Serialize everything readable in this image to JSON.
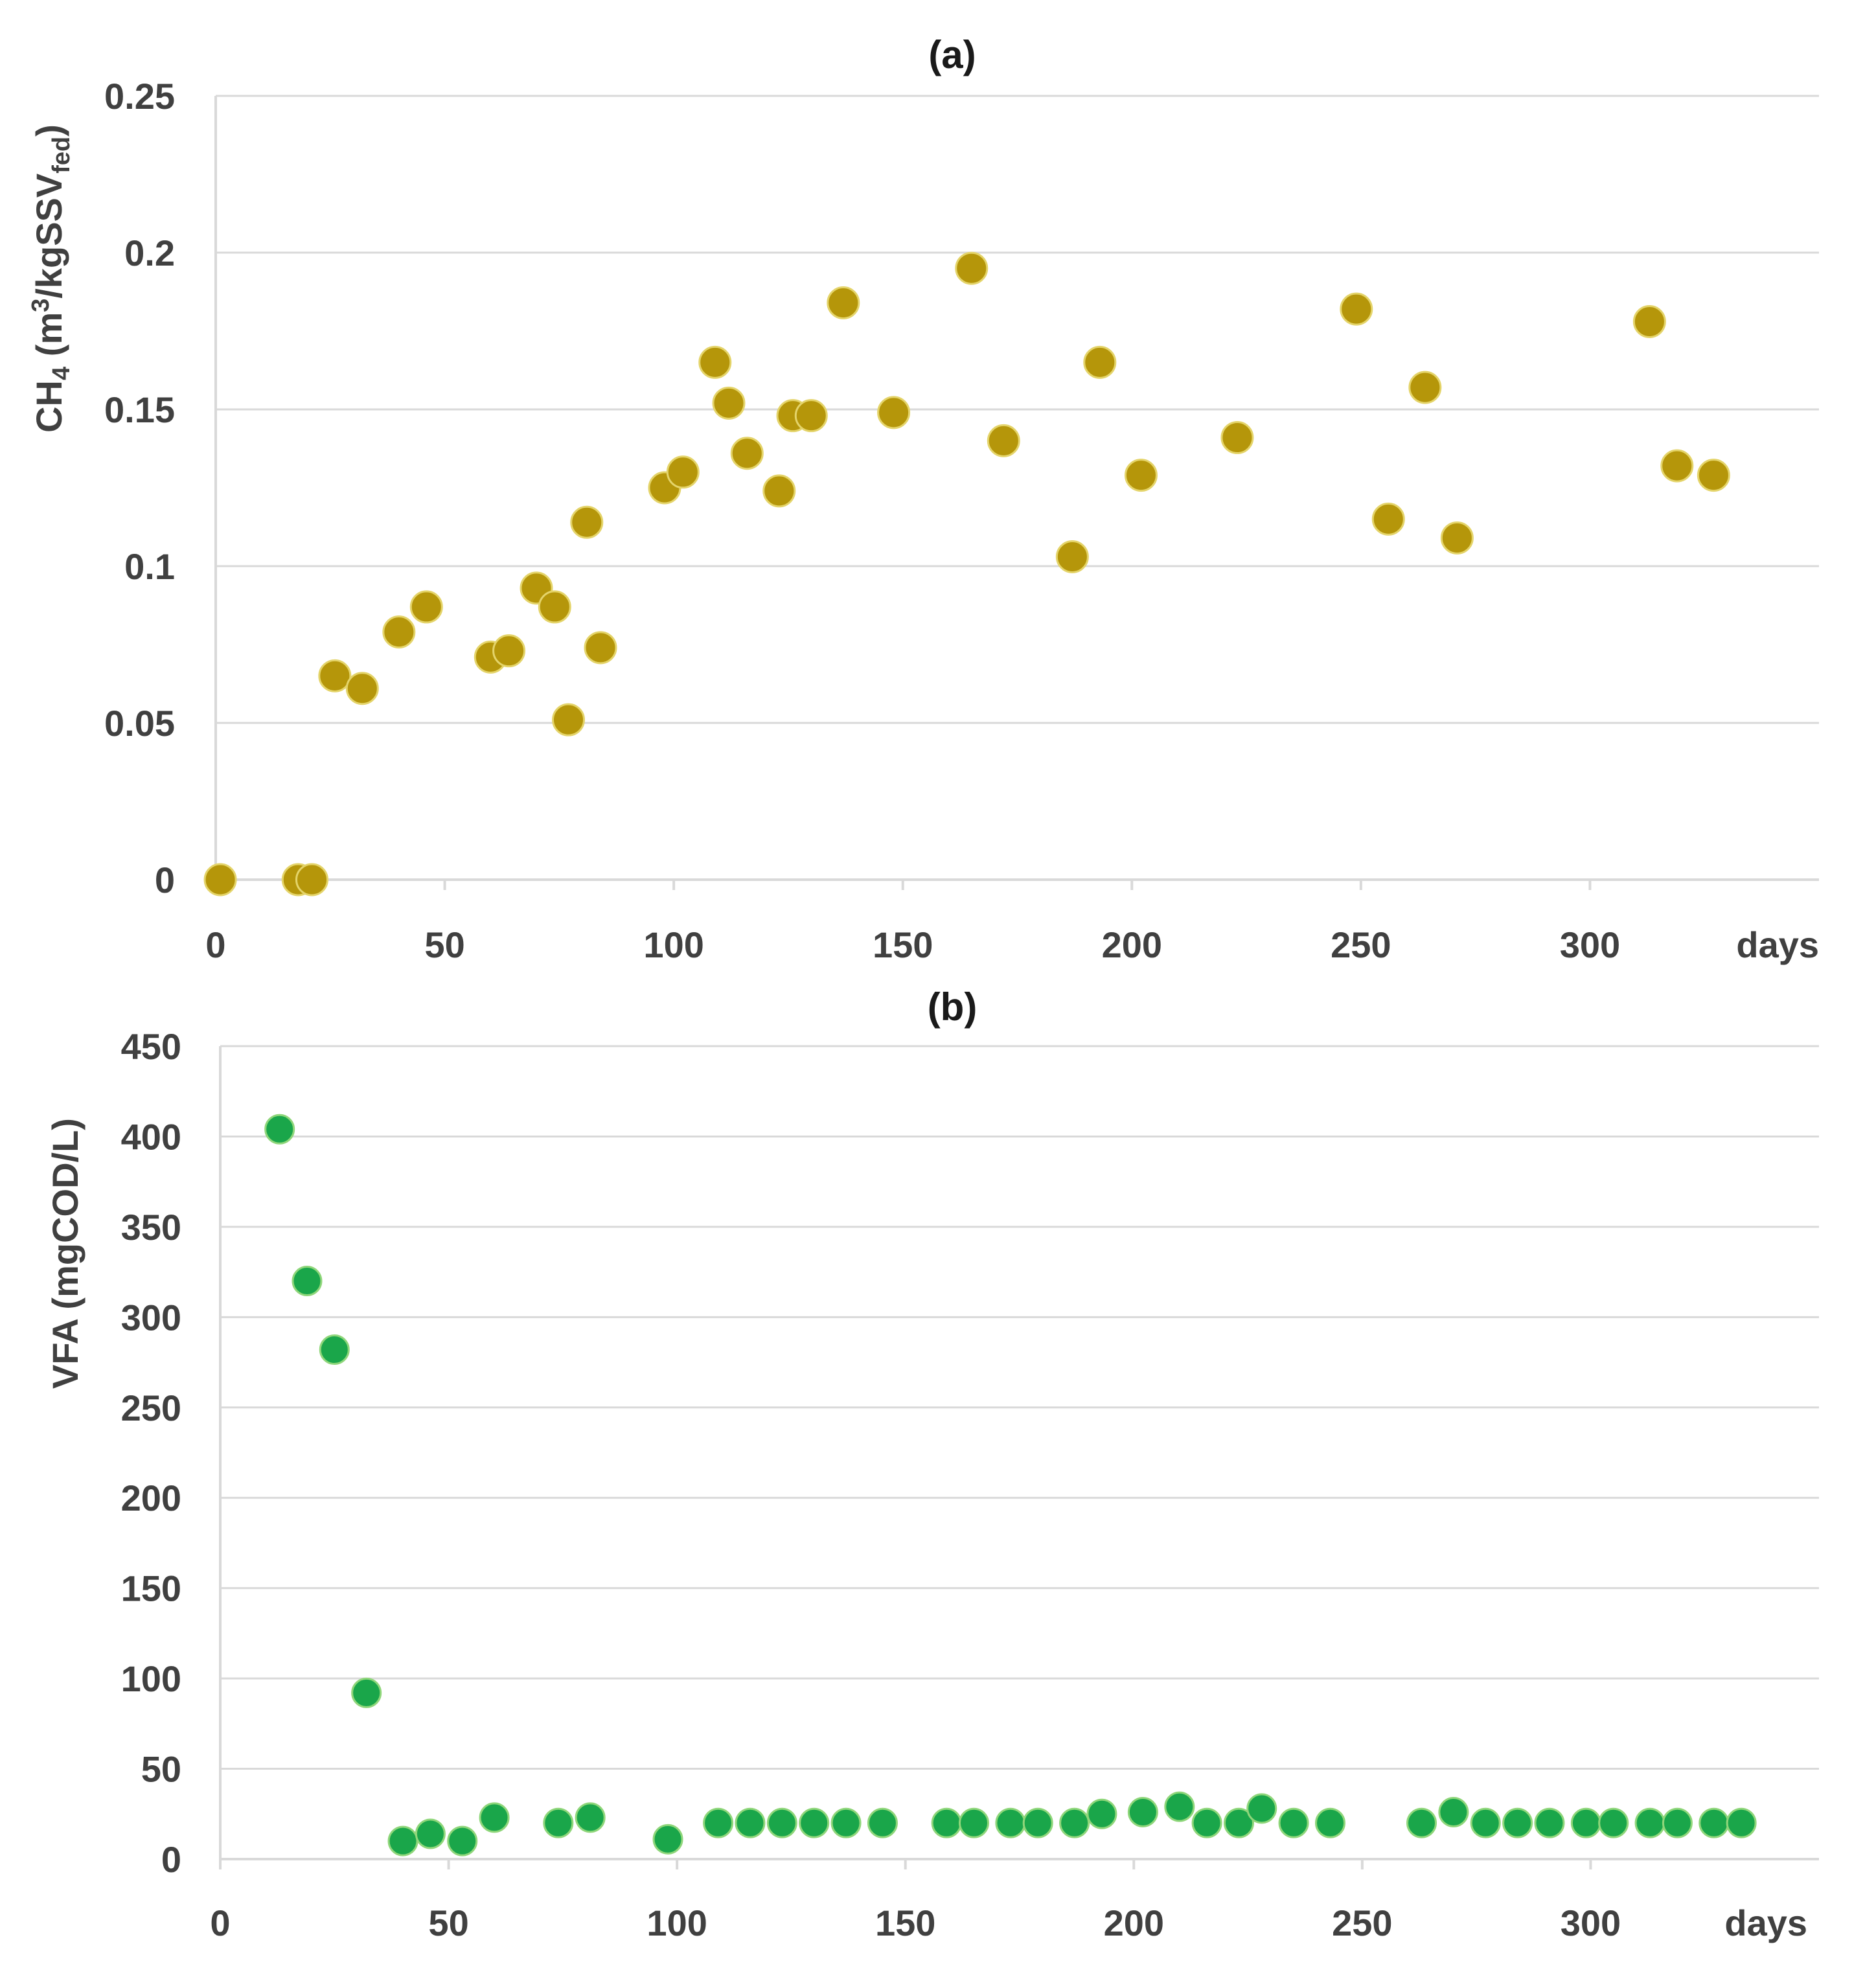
{
  "colors": {
    "series_a": "#b5960a",
    "series_b": "#1aa64a",
    "grid": "#d9d9d9",
    "text": "#404040"
  },
  "chart_data": [
    {
      "type": "scatter",
      "title": "(a)",
      "ylabel": "CH4 (m3/kgSSVfed)",
      "ylabel_parts": {
        "pre": "CH",
        "sub1": "4",
        "mid": " (m",
        "sup": "3",
        "post": "/kgSSV",
        "sub2": "fed",
        "end": ")"
      },
      "xlabel": "days",
      "xlim": [
        0,
        350
      ],
      "ylim": [
        0,
        0.25
      ],
      "xticks": [
        0,
        50,
        100,
        150,
        200,
        250,
        300
      ],
      "yticks": [
        0,
        0.05,
        0.1,
        0.15,
        0.2,
        0.25
      ],
      "xtick_labels": [
        "0",
        "50",
        "100",
        "150",
        "200",
        "250",
        "300"
      ],
      "ytick_labels": [
        "0",
        "0.05",
        "0.1",
        "0.15",
        "0.2",
        "0.25"
      ],
      "series": [
        {
          "name": "CH4",
          "x": [
            1,
            18,
            21,
            26,
            32,
            40,
            46,
            60,
            64,
            70,
            74,
            77,
            81,
            84,
            98,
            102,
            109,
            112,
            116,
            123,
            126,
            130,
            137,
            148,
            165,
            172,
            187,
            193,
            202,
            223,
            249,
            256,
            264,
            271,
            313,
            319,
            327
          ],
          "y": [
            0,
            0,
            0,
            0.065,
            0.061,
            0.079,
            0.087,
            0.071,
            0.073,
            0.093,
            0.087,
            0.051,
            0.114,
            0.074,
            0.125,
            0.13,
            0.165,
            0.152,
            0.136,
            0.124,
            0.148,
            0.148,
            0.184,
            0.149,
            0.195,
            0.14,
            0.103,
            0.165,
            0.129,
            0.141,
            0.182,
            0.115,
            0.157,
            0.109,
            0.178,
            0.132,
            0.129
          ]
        }
      ]
    },
    {
      "type": "scatter",
      "title": "(b)",
      "ylabel": "VFA (mgCOD/L)",
      "xlabel": "days",
      "xlim": [
        0,
        350
      ],
      "ylim": [
        0,
        450
      ],
      "xticks": [
        0,
        50,
        100,
        150,
        200,
        250,
        300
      ],
      "yticks": [
        0,
        50,
        100,
        150,
        200,
        250,
        300,
        350,
        400,
        450
      ],
      "xtick_labels": [
        "0",
        "50",
        "100",
        "150",
        "200",
        "250",
        "300"
      ],
      "ytick_labels": [
        "0",
        "50",
        "100",
        "150",
        "200",
        "250",
        "300",
        "350",
        "400",
        "450"
      ],
      "series": [
        {
          "name": "VFA",
          "x": [
            13,
            19,
            25,
            32,
            40,
            46,
            53,
            60,
            74,
            81,
            98,
            109,
            116,
            123,
            130,
            137,
            145,
            159,
            165,
            173,
            179,
            187,
            193,
            202,
            210,
            216,
            223,
            228,
            235,
            243,
            263,
            270,
            277,
            284,
            291,
            299,
            305,
            313,
            319,
            327,
            333
          ],
          "y": [
            404,
            320,
            282,
            92,
            10,
            14,
            10,
            23,
            20,
            23,
            11,
            20,
            20,
            20,
            20,
            20,
            20,
            20,
            20,
            20,
            20,
            20,
            25,
            26,
            29,
            20,
            20,
            28,
            20,
            20,
            20,
            26,
            20,
            20,
            20,
            20,
            20,
            20,
            20,
            20,
            20
          ]
        }
      ]
    }
  ]
}
